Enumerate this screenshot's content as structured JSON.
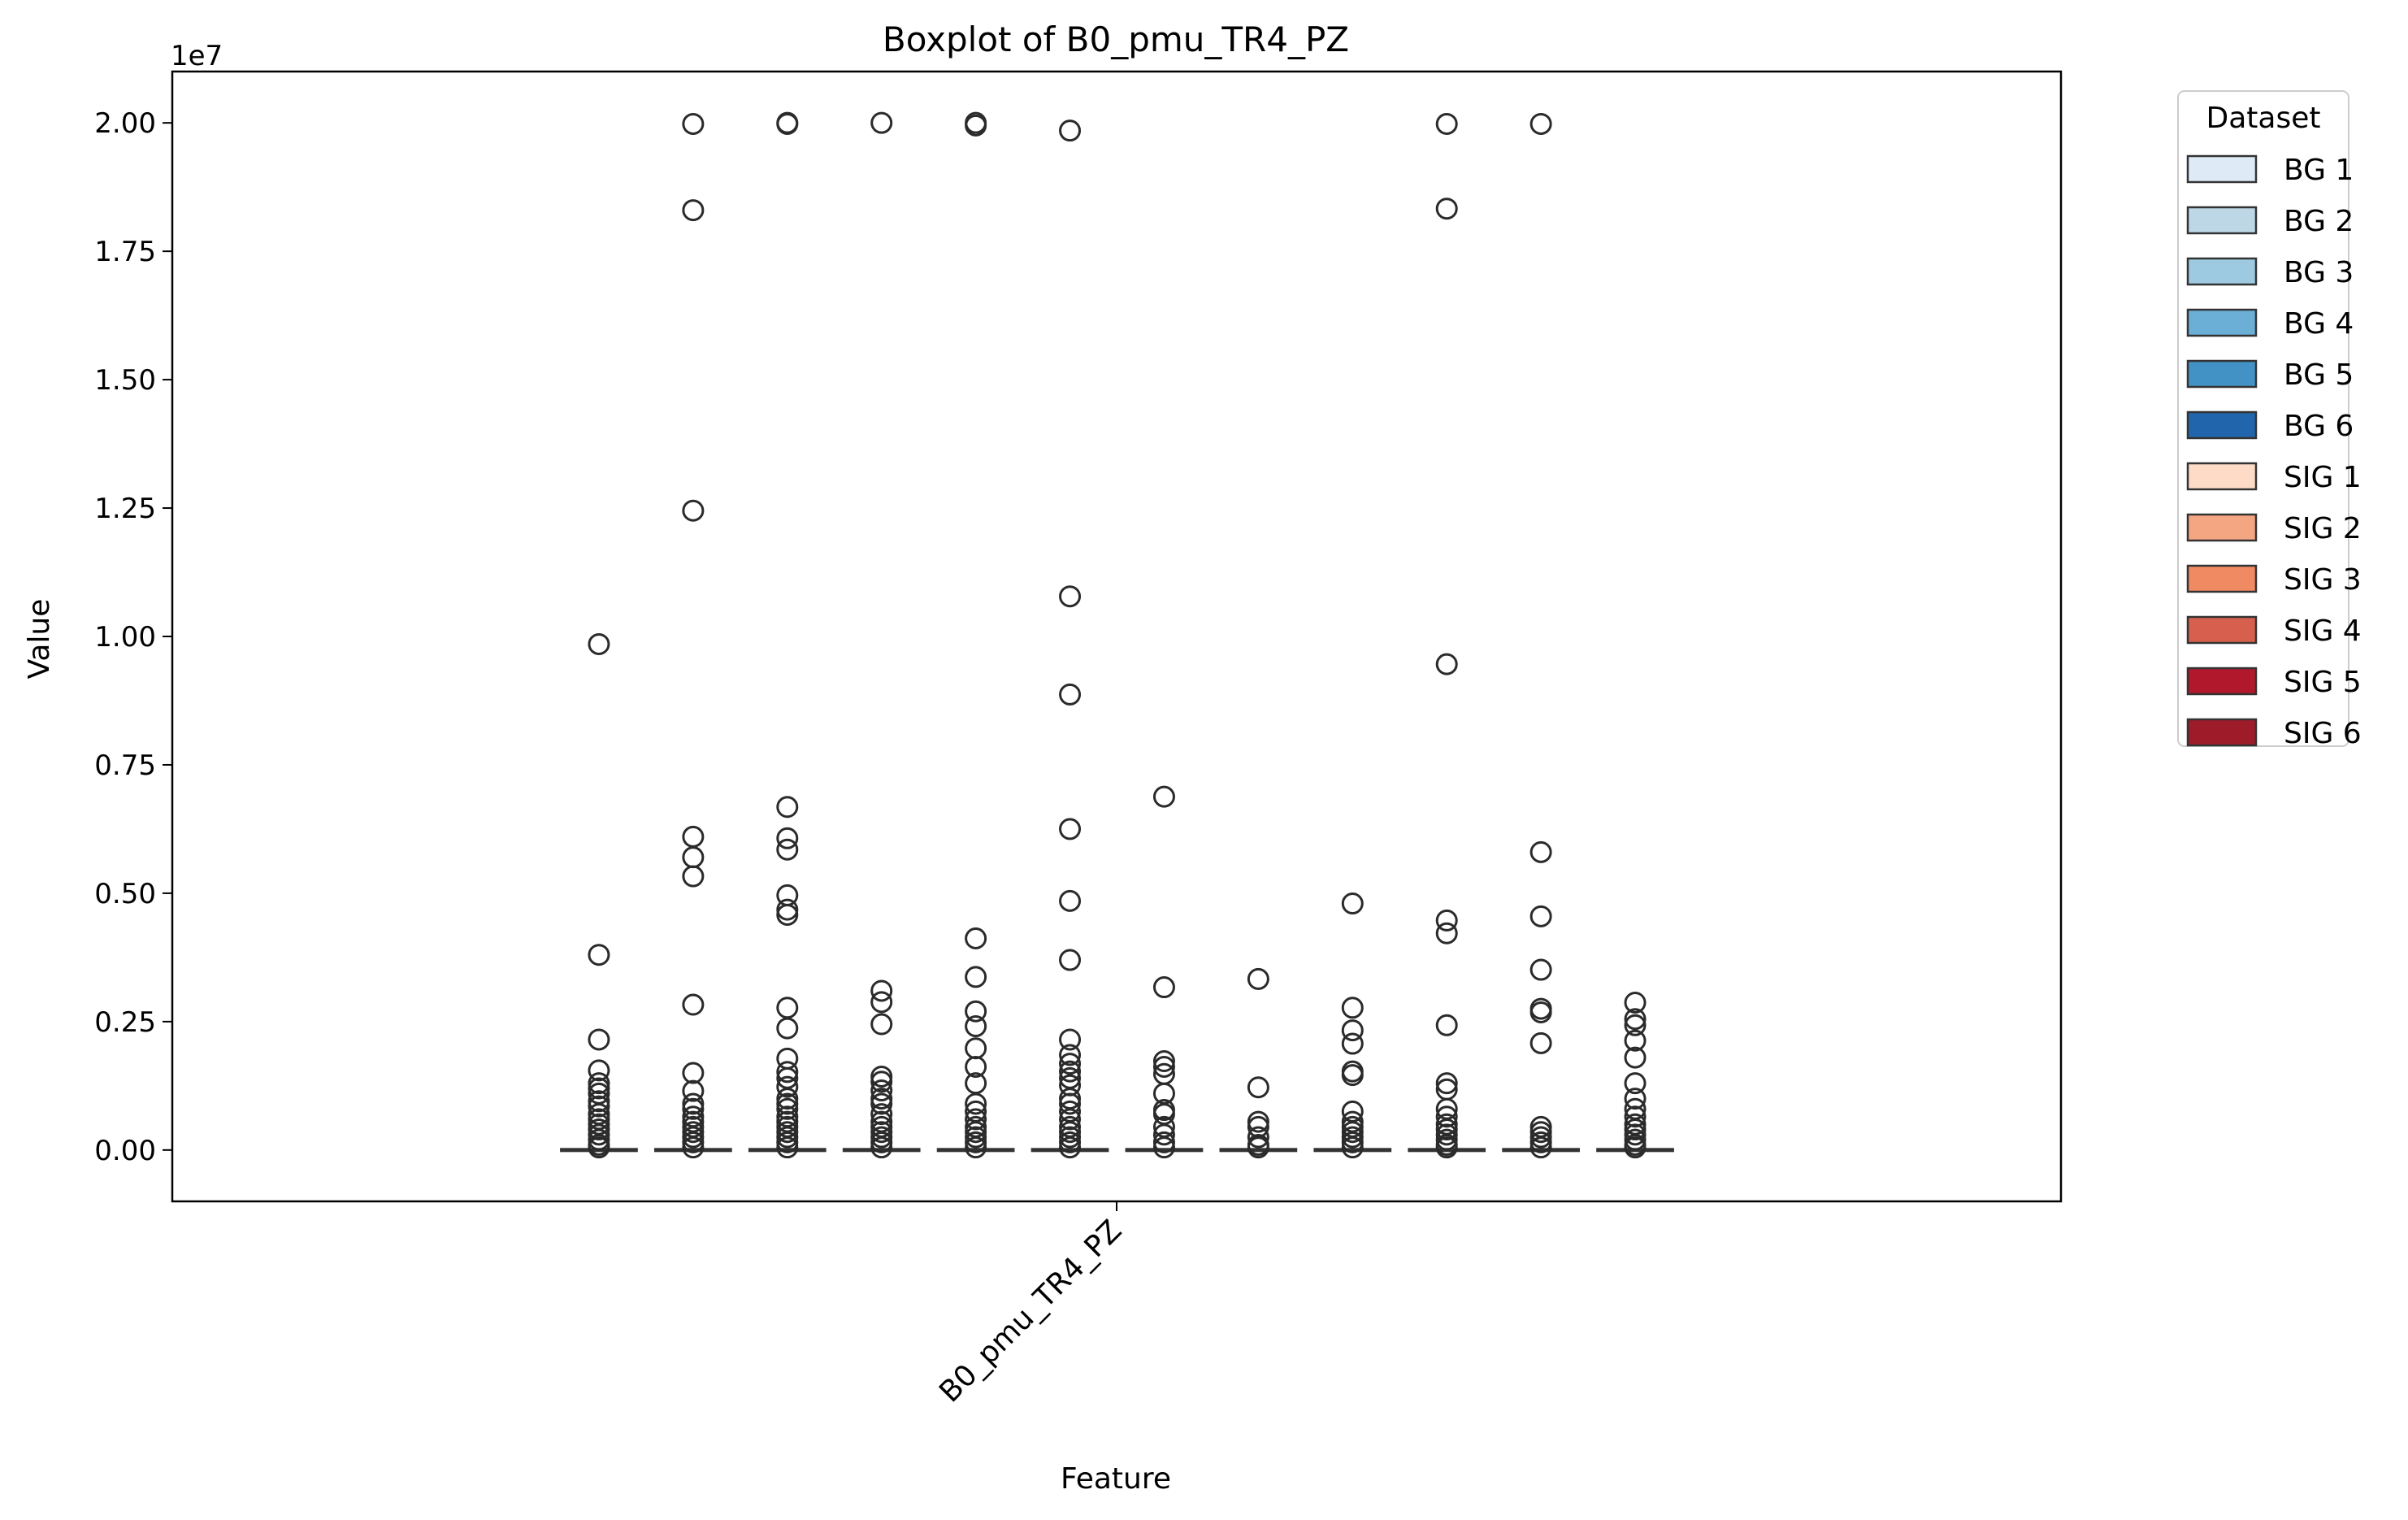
{
  "chart_data": {
    "type": "box",
    "title": "Boxplot of B0_pmu_TR4_PZ",
    "xlabel": "Feature",
    "ylabel": "Value",
    "y_offset_label": "1e7",
    "ylim": [
      -1000000.0,
      21000000.0
    ],
    "y_ticks": [
      0,
      2500000,
      5000000,
      7500000,
      10000000,
      12500000,
      15000000,
      17500000,
      20000000
    ],
    "y_tick_labels": [
      "0.00",
      "0.25",
      "0.50",
      "0.75",
      "1.00",
      "1.25",
      "1.50",
      "1.75",
      "2.00"
    ],
    "categories": [
      "B0_pmu_TR4_PZ"
    ],
    "legend": {
      "title": "Dataset",
      "position": "outside-right-top"
    },
    "grid": false,
    "series": [
      {
        "name": "BG 1",
        "color": "#deebf7",
        "box": {
          "q1": 0,
          "median": 0,
          "q3": 0,
          "whislo": 0,
          "whishi": 0
        },
        "outliers": [
          9850000,
          3800000,
          2150000,
          1550000,
          1300000,
          1200000,
          1100000,
          950000,
          850000,
          700000,
          600000,
          500000,
          400000,
          300000,
          200000,
          100000,
          50000
        ]
      },
      {
        "name": "BG 2",
        "color": "#bdd7e7",
        "box": {
          "q1": 0,
          "median": 0,
          "q3": 0,
          "whislo": 0,
          "whishi": 0
        },
        "outliers": [
          19980000,
          18300000,
          12450000,
          6100000,
          5700000,
          5330000,
          2830000,
          1500000,
          1150000,
          900000,
          800000,
          650000,
          550000,
          450000,
          350000,
          250000,
          150000,
          50000
        ]
      },
      {
        "name": "BG 3",
        "color": "#9ecae1",
        "box": {
          "q1": 0,
          "median": 0,
          "q3": 0,
          "whislo": 0,
          "whishi": 0
        },
        "outliers": [
          20000000,
          19980000,
          6680000,
          6070000,
          5850000,
          4960000,
          4680000,
          4580000,
          2770000,
          2370000,
          1780000,
          1520000,
          1400000,
          1230000,
          1000000,
          900000,
          800000,
          650000,
          550000,
          450000,
          350000,
          250000,
          150000,
          50000
        ]
      },
      {
        "name": "BG 4",
        "color": "#6baed6",
        "box": {
          "q1": 0,
          "median": 0,
          "q3": 0,
          "whislo": 0,
          "whishi": 0
        },
        "outliers": [
          20000000,
          3100000,
          2880000,
          2450000,
          1430000,
          1330000,
          1160000,
          1000000,
          900000,
          700000,
          550000,
          450000,
          350000,
          250000,
          150000,
          50000
        ]
      },
      {
        "name": "BG 5",
        "color": "#4292c6",
        "box": {
          "q1": 0,
          "median": 0,
          "q3": 0,
          "whislo": 0,
          "whishi": 0
        },
        "outliers": [
          20000000,
          19950000,
          4120000,
          3370000,
          2700000,
          2410000,
          1980000,
          1620000,
          1300000,
          900000,
          750000,
          600000,
          450000,
          350000,
          250000,
          150000,
          50000
        ]
      },
      {
        "name": "BG 6",
        "color": "#2166ac",
        "box": {
          "q1": 0,
          "median": 0,
          "q3": 0,
          "whislo": 0,
          "whishi": 0
        },
        "outliers": [
          19850000,
          10780000,
          8870000,
          6250000,
          4850000,
          3700000,
          2150000,
          1850000,
          1680000,
          1530000,
          1400000,
          1260000,
          1000000,
          900000,
          750000,
          600000,
          450000,
          350000,
          250000,
          150000,
          50000
        ]
      },
      {
        "name": "SIG 1",
        "color": "#fddbc7",
        "box": {
          "q1": 0,
          "median": 0,
          "q3": 0,
          "whislo": 0,
          "whishi": 0
        },
        "outliers": [
          6880000,
          3170000,
          1730000,
          1620000,
          1480000,
          1100000,
          780000,
          700000,
          450000,
          300000,
          150000,
          50000
        ]
      },
      {
        "name": "SIG 2",
        "color": "#f4a582",
        "box": {
          "q1": 0,
          "median": 0,
          "q3": 0,
          "whislo": 0,
          "whishi": 0
        },
        "outliers": [
          3330000,
          1220000,
          550000,
          450000,
          250000,
          100000,
          50000
        ]
      },
      {
        "name": "SIG 3",
        "color": "#ef8a62",
        "box": {
          "q1": 0,
          "median": 0,
          "q3": 0,
          "whislo": 0,
          "whishi": 0
        },
        "outliers": [
          4800000,
          2770000,
          2330000,
          2070000,
          1530000,
          1460000,
          750000,
          550000,
          450000,
          350000,
          250000,
          150000,
          50000
        ]
      },
      {
        "name": "SIG 4",
        "color": "#d6604d",
        "box": {
          "q1": 0,
          "median": 0,
          "q3": 0,
          "whislo": 0,
          "whishi": 0
        },
        "outliers": [
          19980000,
          18330000,
          9460000,
          4470000,
          4220000,
          2430000,
          1300000,
          1180000,
          800000,
          650000,
          500000,
          400000,
          300000,
          200000,
          100000,
          50000
        ]
      },
      {
        "name": "SIG 5",
        "color": "#b2182b",
        "box": {
          "q1": 0,
          "median": 0,
          "q3": 0,
          "whislo": 0,
          "whishi": 0
        },
        "outliers": [
          19980000,
          5800000,
          4550000,
          3510000,
          2750000,
          2680000,
          2080000,
          450000,
          350000,
          250000,
          150000,
          50000
        ]
      },
      {
        "name": "SIG 6",
        "color": "#9e1b2a",
        "box": {
          "q1": 0,
          "median": 0,
          "q3": 0,
          "whislo": 0,
          "whishi": 0
        },
        "outliers": [
          2870000,
          2550000,
          2430000,
          2130000,
          1800000,
          1300000,
          1000000,
          800000,
          650000,
          500000,
          400000,
          300000,
          200000,
          100000,
          50000
        ]
      }
    ]
  }
}
